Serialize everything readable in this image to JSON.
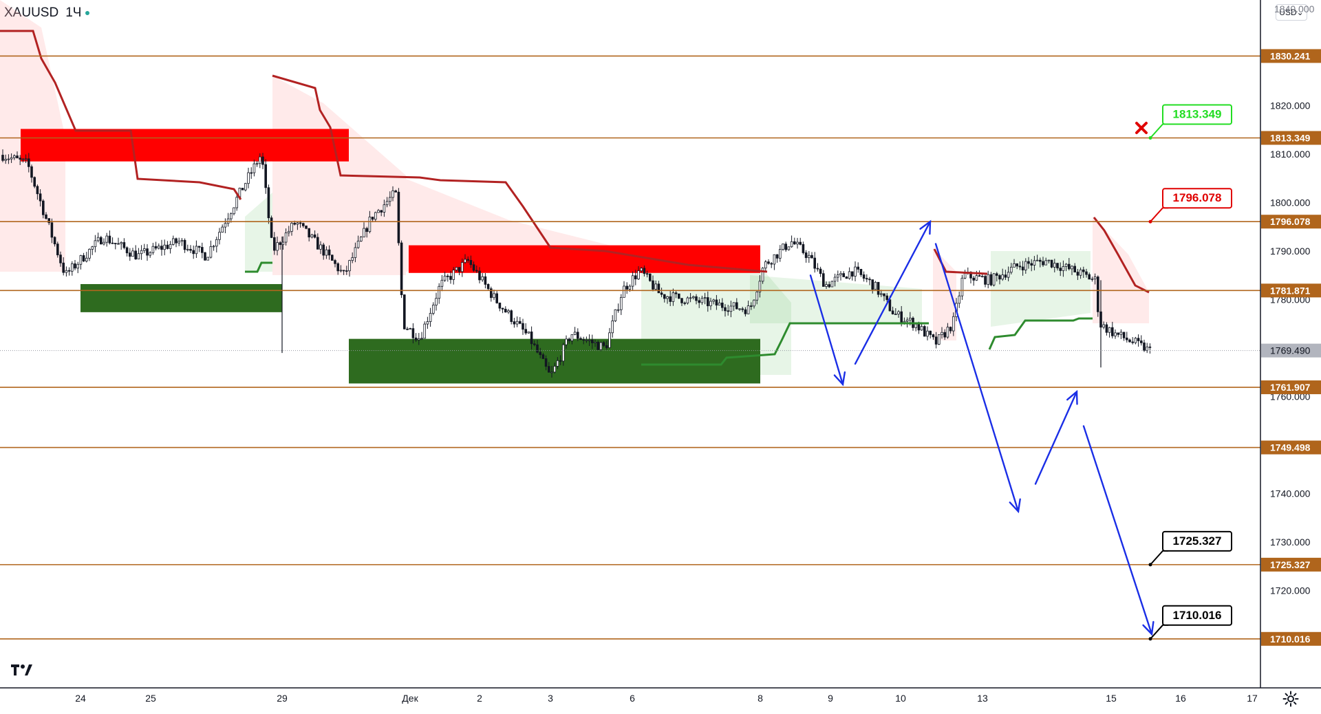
{
  "header": {
    "symbol": "XAUUSD",
    "interval": "1Ч",
    "currency": "USD",
    "currency_arrow": "⌄"
  },
  "icons": {
    "logo": "tradingview-logo-icon",
    "settings": "gear-icon",
    "cancel_marker": "cross-icon"
  },
  "colors": {
    "level_line": "#b0651c",
    "level_label_bg": "#b0651c",
    "current_label_bg": "#b2b5be",
    "zone_supply": "#ff0000",
    "zone_demand": "#2e6b1f",
    "stop_line": "#b22222",
    "stop_line_green": "#2e8b2e",
    "cloud_red": "rgba(255,170,170,0.25)",
    "cloud_green": "rgba(120,200,120,0.18)",
    "arrow": "#1a2ee6",
    "candle": "#131722"
  },
  "chart_data": {
    "type": "candlestick",
    "instrument": "XAUUSD",
    "timeframe": "1Ч",
    "ylim": [
      1707,
      1840
    ],
    "x_ticks": [
      "24",
      "25",
      "29",
      "Дек",
      "2",
      "3",
      "6",
      "8",
      "9",
      "10",
      "13",
      "15",
      "16",
      "17"
    ],
    "y_ticks": [
      1820.0,
      1810.0,
      1800.0,
      1790.0,
      1780.0,
      1760.0,
      1740.0,
      1730.0,
      1720.0
    ],
    "y_tick_labels": [
      "1820.000",
      "1810.000",
      "1800.000",
      "1790.000",
      "1780.000",
      "1760.000",
      "1740.000",
      "1730.000",
      "1720.000"
    ],
    "y_top_partial_label": "1840.000",
    "current_price": 1769.49,
    "current_price_label": "1769.490",
    "horizontal_levels": [
      {
        "value": 1830.241,
        "label": "1830.241"
      },
      {
        "value": 1813.349,
        "label": "1813.349"
      },
      {
        "value": 1796.078,
        "label": "1796.078"
      },
      {
        "value": 1781.871,
        "label": "1781.871"
      },
      {
        "value": 1761.907,
        "label": "1761.907"
      },
      {
        "value": 1749.498,
        "label": "1749.498"
      },
      {
        "value": 1725.327,
        "label": "1725.327"
      },
      {
        "value": 1710.016,
        "label": "1710.016"
      }
    ],
    "callouts": [
      {
        "value": 1813.349,
        "text": "1813.349",
        "style": "green"
      },
      {
        "value": 1796.078,
        "text": "1796.078",
        "style": "red"
      },
      {
        "value": 1725.327,
        "text": "1725.327",
        "style": "black"
      },
      {
        "value": 1710.016,
        "text": "1710.016",
        "style": "black"
      }
    ],
    "zones": [
      {
        "kind": "supply",
        "from_date": "2021-11-23",
        "to_date": "2021-11-30",
        "low": 1808.5,
        "high": 1815.2
      },
      {
        "kind": "demand",
        "from_date": "2021-11-24",
        "to_date": "2021-11-29",
        "low": 1777.4,
        "high": 1783.2
      },
      {
        "kind": "supply",
        "from_date": "2021-12-01",
        "to_date": "2021-12-08",
        "low": 1785.5,
        "high": 1791.2
      },
      {
        "kind": "demand",
        "from_date": "2021-11-30",
        "to_date": "2021-12-08",
        "low": 1762.7,
        "high": 1771.9
      }
    ],
    "forecast_path_1": [
      {
        "date": "2021-12-08",
        "price": 1785.0
      },
      {
        "date": "2021-12-09",
        "price": 1762.5
      },
      {
        "date": "2021-12-10",
        "price": 1796.1
      },
      {
        "date": "2021-12-10",
        "price": 1791.5
      },
      {
        "date": "2021-12-13",
        "price": 1736.3
      },
      {
        "date": "2021-12-14",
        "price": 1761.0
      },
      {
        "date": "2021-12-16",
        "price": 1711.0
      }
    ]
  }
}
